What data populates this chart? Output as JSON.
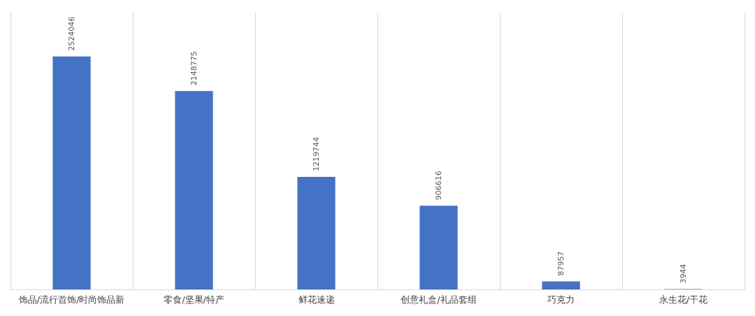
{
  "chart_data": {
    "type": "bar",
    "categories": [
      "饰品/流行首饰/时尚饰品新",
      "零食/坚果/特产",
      "鲜花速递",
      "创意礼盒/礼品套组",
      "巧克力",
      "永生花/干花"
    ],
    "values": [
      2524046,
      2148775,
      1219744,
      906616,
      87957,
      3944
    ],
    "color": "#4472c4",
    "data_labels": true,
    "grid": "x",
    "tick_labels": "x"
  }
}
